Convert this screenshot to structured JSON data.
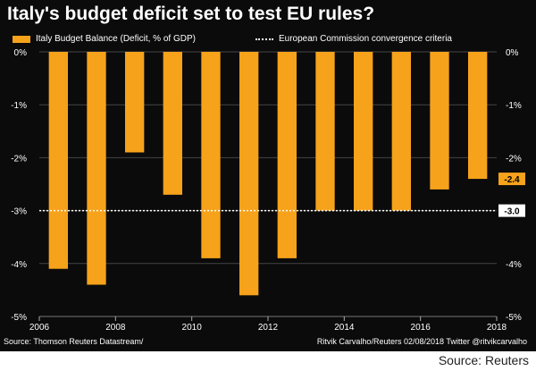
{
  "title": "Italy's budget deficit set to test EU rules?",
  "legend": {
    "series_label": "Italy Budget Balance (Deficit, % of GDP)",
    "reference_label": "European Commission convergence criteria"
  },
  "colors": {
    "background": "#0b0b0b",
    "bar": "#f7a21b",
    "text": "#ffffff",
    "grid": "#444444"
  },
  "chart_data": {
    "type": "bar",
    "categories": [
      "2006",
      "2007",
      "2008",
      "2009",
      "2010",
      "2011",
      "2012",
      "2013",
      "2014",
      "2015",
      "2016",
      "2017"
    ],
    "values": [
      -4.1,
      -4.4,
      -1.9,
      -2.7,
      -3.9,
      -4.6,
      -3.9,
      -3.0,
      -3.0,
      -3.0,
      -2.6,
      -2.4
    ],
    "ylim": [
      -5,
      0
    ],
    "xlim": [
      2006,
      2018
    ],
    "y_ticks": [
      0,
      -1,
      -2,
      -3,
      -4,
      -5
    ],
    "y_tick_labels": [
      "0%",
      "-1%",
      "-2%",
      "-3%",
      "-4%",
      "-5%"
    ],
    "x_ticks": [
      2006,
      2008,
      2010,
      2012,
      2014,
      2016,
      2018
    ],
    "x_tick_labels": [
      "2006",
      "2008",
      "2010",
      "2012",
      "2014",
      "2016",
      "2018"
    ],
    "reference_line": {
      "value": -3.0
    },
    "value_labels": [
      {
        "value": -2.4,
        "text": "-2.4",
        "style": "bar"
      },
      {
        "value": -3.0,
        "text": "-3.0",
        "style": "reference"
      }
    ],
    "grid": true,
    "legend_position": "top-left"
  },
  "footer": {
    "left": "Source: Thomson Reuters Datastream/",
    "right": "Ritvik Carvalho/Reuters 02/08/2018 Twitter @ritvikcarvalho"
  },
  "source_note": "Source: Reuters"
}
